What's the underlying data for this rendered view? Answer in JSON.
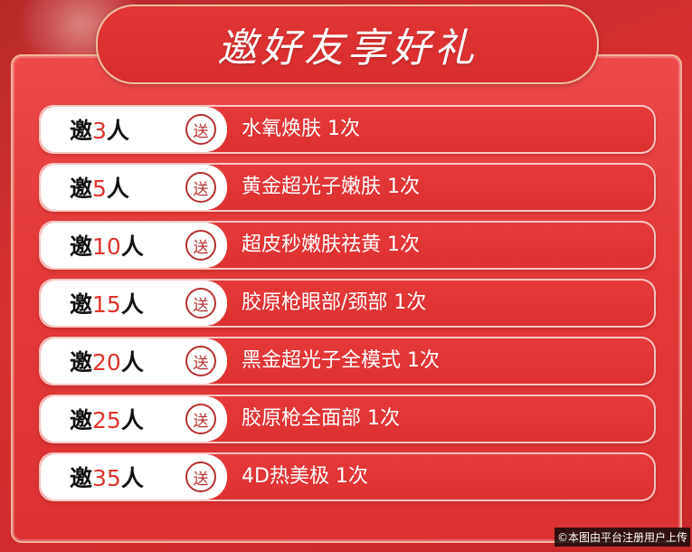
{
  "title": "邀好友享好礼",
  "invite_prefix": "邀",
  "invite_suffix": "人",
  "gift_badge": "送",
  "rows": [
    {
      "count": "3",
      "reward": "水氧焕肤 1次"
    },
    {
      "count": "5",
      "reward": "黄金超光子嫩肤 1次"
    },
    {
      "count": "10",
      "reward": "超皮秒嫩肤祛黄 1次"
    },
    {
      "count": "15",
      "reward": "胶原枪眼部/颈部 1次"
    },
    {
      "count": "20",
      "reward": "黑金超光子全模式 1次"
    },
    {
      "count": "25",
      "reward": "胶原枪全面部 1次"
    },
    {
      "count": "35",
      "reward": "4D热美极 1次"
    }
  ],
  "watermark": "©本图由平台注册用户上传",
  "colors": {
    "accent": "#e0342c",
    "background": "#d8302e"
  }
}
